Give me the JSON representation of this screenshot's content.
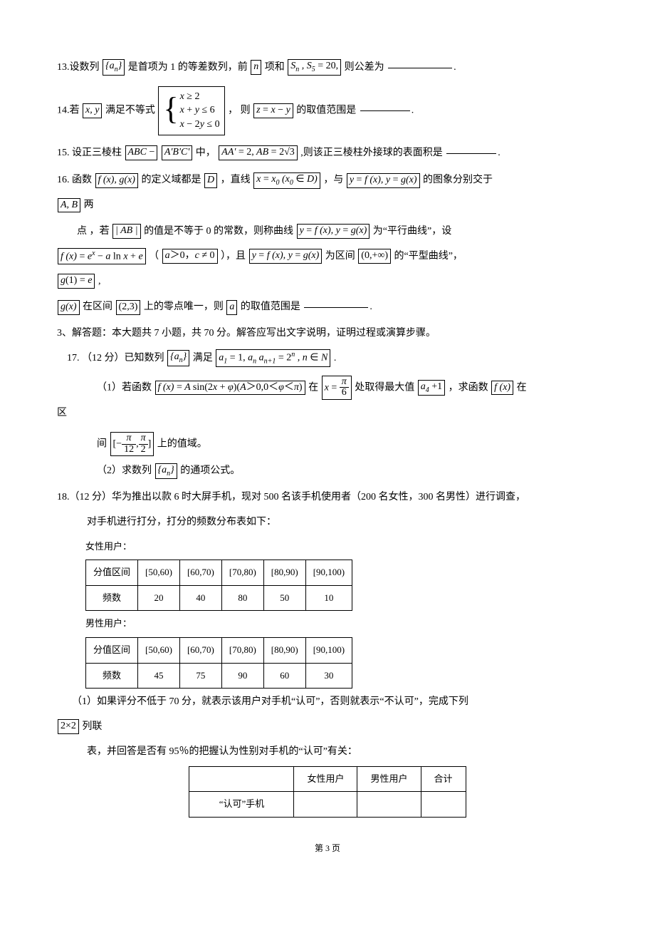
{
  "q13": {
    "prefix": "13.设数列",
    "seq": "{a<span class='sub'>n</span>}",
    "mid1": "是首项为 1 的等差数列，前",
    "n": "n",
    "mid2": "项和",
    "sn": "S<span class='sub'>n</span> , S<span class='sub'>5</span> <span class='upright'>= 20,</span>",
    "tail": "则公差为"
  },
  "q14": {
    "prefix": "14.若",
    "xy": "x, y",
    "mid1": "满足不等式",
    "sys1": "x <span class='upright'>≥ 2</span>",
    "sys2": "x <span class='upright'>+</span> y <span class='upright'>≤ 6</span>",
    "sys3": "x <span class='upright'>− 2</span>y <span class='upright'>≤ 0</span>",
    "mid2": "，  则",
    "z": "z <span class='upright'>=</span> x <span class='upright'>−</span> y",
    "tail": "的取值范围是"
  },
  "q15": {
    "prefix": "15. 设正三棱柱",
    "abc": "ABC <span class='upright'>−</span> ",
    "aprime": "A'B'C'",
    "mid1": "中，",
    "dims": "AA' <span class='upright'>= 2,</span> AB <span class='upright'>= 2√3</span>",
    "tail": ",则该正三棱柱外接球的表面积是"
  },
  "q16": {
    "prefix": "16. 函数",
    "fg": "f (x), g(x)",
    "mid1": "的定义域都是",
    "D": "D",
    "mid2": "，直线",
    "xx0": "x <span class='upright'>=</span> x<span class='sub'>0</span> (x<span class='sub'>0</span> <span class='upright'>∈</span> D)",
    "mid3": "，与",
    "yy": "y <span class='upright'>=</span> f (x), y <span class='upright'>=</span> g(x)",
    "tail1": "的图象分别交于",
    "AB": "A, B",
    "tail2": "两",
    "line2a": "点 ，若",
    "absAB": "| AB |",
    "line2b": "的值是不等于 0 的常数，则称曲线",
    "yy2": "y <span class='upright'>=</span> f (x), y <span class='upright'>=</span> g(x)",
    "line2c": "  为“平行曲线”，设",
    "fx": "f (x) <span class='upright'>=</span> e<span class='sup'>x</span> <span class='upright'>−</span> a <span class='upright'>ln</span> x <span class='upright'>+</span> e",
    "paren_open": " （",
    "cond": "a<span class='upright'>＞0，</span>c <span class='upright'>≠ 0</span>",
    "paren_close": "），且",
    "yy3": "y <span class='upright'>=</span> f (x), y <span class='upright'>=</span> g(x)",
    "line3b": "为区间",
    "intv": "<span class='upright'>(0,+∞)</span>",
    "line3c": "的“平型曲线”，",
    "g1": "g<span class='upright'>(1) =</span> e",
    "comma": ",",
    "gx": "g(x)",
    "line4a": "在区间",
    "intv23": "<span class='upright'>(2,3)</span>",
    "line4b": "上的零点唯一，则",
    "a": "a",
    "line4c": "的取值范围是"
  },
  "sec3": "3、解答题：本大题共 7 小题，共 70 分。解答应写出文字说明，证明过程或演算步骤。",
  "q17": {
    "head": "17. （12 分）已知数列",
    "seq": "{a<span class='sub'>n</span>}",
    "mid": "满足",
    "cond": "a<span class='sub'>1</span> <span class='upright'>= 1,</span> a<span class='sub'>n</span> a<span class='sub'>n+1</span> <span class='upright'>= 2</span><span class='sup'>n</span> , n <span class='upright'>∈</span> N",
    "period": ".",
    "p1a": "（1）若函数",
    "fx": "f (x) <span class='upright'>=</span> A <span class='upright'>sin(2</span>x <span class='upright'>+</span> φ<span class='upright'>)(</span>A<span class='upright'>＞0,0＜</span>φ<span class='upright'>＜</span>π<span class='upright'>)</span>",
    "p1b": "在",
    "xval_num": "π",
    "xval_den": "<span class='upright'>6</span>",
    "xeq": "x <span class='upright'>=</span> ",
    "p1c": "处取得最大值",
    "a4": "a<span class='sub'>4</span> <span class='upright'>+1</span>",
    "p1d": "，求函数",
    "fx2": "f (x)",
    "p1e": "在",
    "qu": "区",
    "p1_line2a": "间",
    "range_l": "<span class='upright'>[−</span>",
    "r1num": "π",
    "r1den": "<span class='upright'>12</span>",
    "range_m": "<span class='upright'>,</span>",
    "r2num": "π",
    "r2den": "<span class='upright'>2</span>",
    "range_r": "<span class='upright'>]</span>",
    "p1_line2b": "上的值域。",
    "p2": "（2）求数列",
    "seq2": "{a<span class='sub'>n</span>}",
    "p2b": "的通项公式。"
  },
  "q18": {
    "head": "18.（12 分）华为推出以款 6 时大屏手机，现对 500 名该手机使用者（200 名女性，300 名男性）进行调查，",
    "line2": "对手机进行打分，打分的频数分布表如下：",
    "female_label": "女性用户：",
    "male_label": "男性用户：",
    "col_header": "分值区间",
    "row_header": "频数",
    "intervals": [
      "[50,60)",
      "[60,70)",
      "[70,80)",
      "[80,90)",
      "[90,100)"
    ],
    "female_freq": [
      "20",
      "40",
      "80",
      "50",
      "10"
    ],
    "male_freq": [
      "45",
      "75",
      "90",
      "60",
      "30"
    ],
    "p1a": "（1）如果评分不低于 70 分，就表示该用户对手机“认可”，否则就表示“不认可”，完成下列",
    "twoby2": "<span class='upright'>2×2</span>",
    "p1b": "列联",
    "p1_line2": "表，并回答是否有 95％的把握认为性别对手机的“认可”有关：",
    "ct_cols": [
      "女性用户",
      "男性用户",
      "合计"
    ],
    "ct_row1": "“认可”手机"
  },
  "footer": "第 3 页"
}
